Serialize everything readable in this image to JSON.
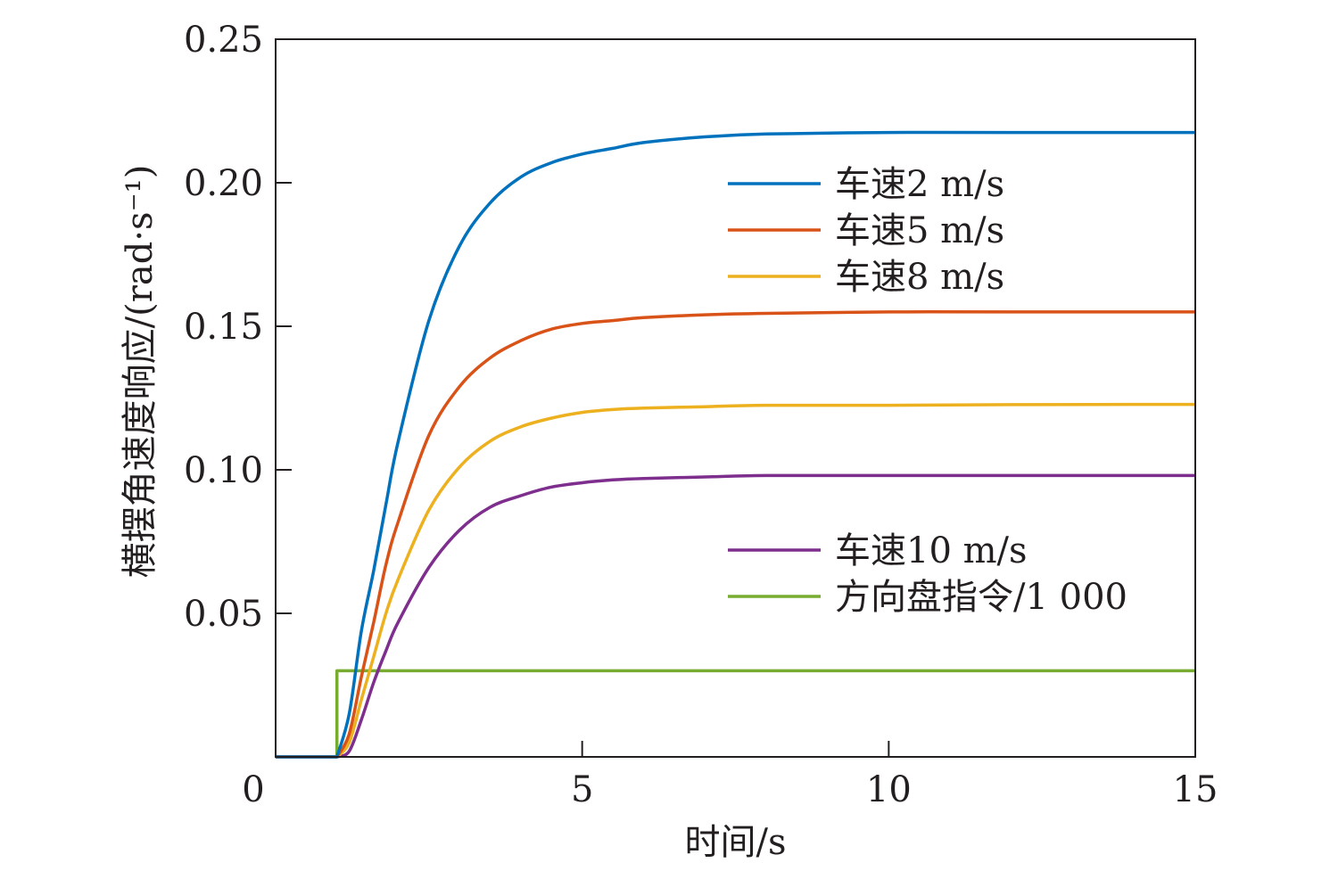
{
  "chart_data": {
    "type": "line",
    "xlabel": "时间/s",
    "ylabel": "横摆角速度响应/(rad·s⁻¹)",
    "xlim": [
      0,
      15
    ],
    "ylim": [
      0,
      0.25
    ],
    "x_ticks": [
      0,
      5,
      10,
      15
    ],
    "x_tick_labels": [
      "0",
      "5",
      "10",
      "15"
    ],
    "y_ticks": [
      0.05,
      0.1,
      0.15,
      0.2,
      0.25
    ],
    "y_tick_labels": [
      "0.05",
      "0.10",
      "0.15",
      "0.20",
      "0.25"
    ],
    "grid": false,
    "x": [
      0,
      1.0,
      1.2,
      1.4,
      1.6,
      1.8,
      2.0,
      2.5,
      3.0,
      3.5,
      4.0,
      4.5,
      5.0,
      5.5,
      6.0,
      7.0,
      8.0,
      10.0,
      12.0,
      15.0
    ],
    "series": [
      {
        "name": "车速2 m/s",
        "color": "#0072bd",
        "values": [
          0,
          0,
          0.015,
          0.044,
          0.065,
          0.088,
          0.11,
          0.152,
          0.178,
          0.193,
          0.202,
          0.207,
          0.21,
          0.212,
          0.214,
          0.216,
          0.217,
          0.2175,
          0.2175,
          0.2175
        ]
      },
      {
        "name": "车速5 m/s",
        "color": "#d95319",
        "values": [
          0,
          0,
          0.008,
          0.028,
          0.047,
          0.067,
          0.082,
          0.112,
          0.129,
          0.139,
          0.145,
          0.149,
          0.151,
          0.152,
          0.153,
          0.154,
          0.1545,
          0.155,
          0.155,
          0.155
        ]
      },
      {
        "name": "车速8 m/s",
        "color": "#edb120",
        "values": [
          0,
          0,
          0.005,
          0.02,
          0.035,
          0.05,
          0.062,
          0.086,
          0.101,
          0.11,
          0.115,
          0.118,
          0.12,
          0.121,
          0.1215,
          0.122,
          0.1225,
          0.1225,
          0.1227,
          0.1228
        ]
      },
      {
        "name": "车速10 m/s",
        "color": "#7e2f8e",
        "values": [
          0,
          0,
          0.002,
          0.013,
          0.026,
          0.037,
          0.047,
          0.066,
          0.079,
          0.087,
          0.091,
          0.094,
          0.0955,
          0.0965,
          0.097,
          0.0975,
          0.098,
          0.098,
          0.098,
          0.098
        ]
      },
      {
        "name": "方向盘指令/1 000",
        "color": "#77ac30",
        "step": true,
        "values": [
          0,
          0,
          0.03,
          0.03,
          0.03,
          0.03,
          0.03,
          0.03,
          0.03,
          0.03,
          0.03,
          0.03,
          0.03,
          0.03,
          0.03,
          0.03,
          0.03,
          0.03,
          0.03,
          0.03
        ]
      }
    ],
    "legend_groups": [
      [
        0,
        1,
        2
      ],
      [
        3,
        4
      ]
    ]
  }
}
